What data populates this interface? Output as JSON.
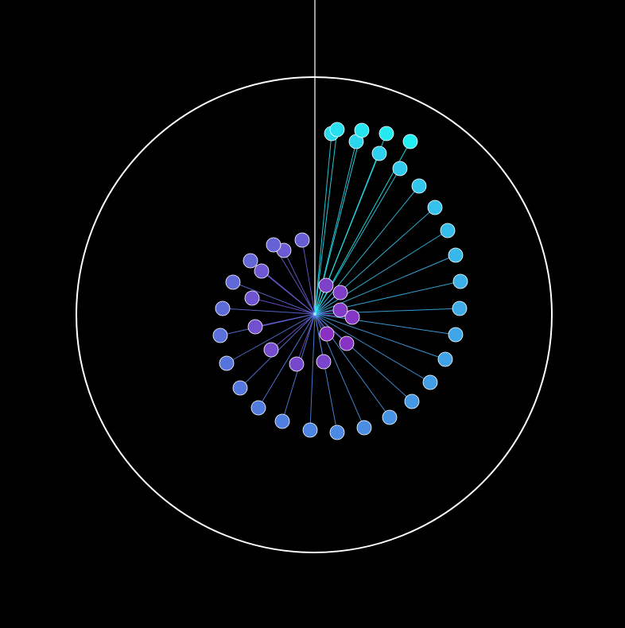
{
  "scene": {
    "background": "#000000",
    "boundary_color": "#ffffff",
    "guide_color": "#cfcfcf",
    "node_stroke": "#ffffff",
    "color_start": "#8a2fc4",
    "color_mid": "#4f7fe0",
    "color_end": "#22eef2",
    "node_count": 48
  }
}
